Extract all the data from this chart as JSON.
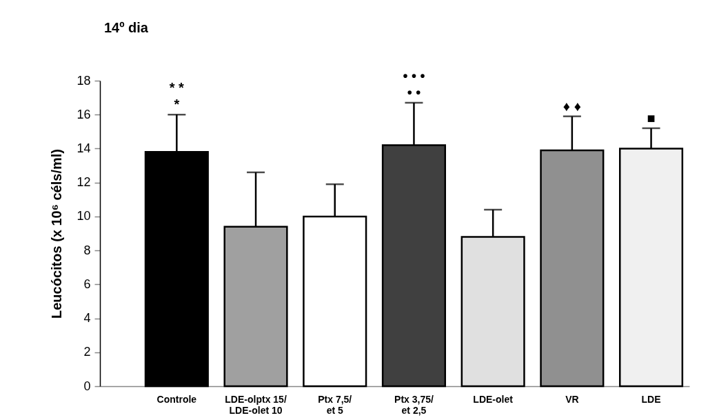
{
  "chart_data": {
    "type": "bar",
    "title": "14º dia",
    "ylabel": "Leucócitos (x 10⁶ céls/ml)",
    "categories": [
      "Controle",
      "LDE-olptx 15/\nLDE-olet 10",
      "Ptx 7,5/\net 5",
      "Ptx 3,75/\net 2,5",
      "LDE-olet",
      "VR",
      "LDE"
    ],
    "values": [
      13.8,
      9.4,
      10.0,
      14.2,
      8.8,
      13.9,
      14.0
    ],
    "errors": [
      [
        13.8,
        16.0
      ],
      [
        9.4,
        12.6
      ],
      [
        10.0,
        11.9
      ],
      [
        14.2,
        16.7
      ],
      [
        8.8,
        10.4
      ],
      [
        13.9,
        15.9
      ],
      [
        14.0,
        15.2
      ]
    ],
    "colors": [
      "#000000",
      "#a0a0a0",
      "#ffffff",
      "#404040",
      "#e0e0e0",
      "#909090",
      "#f0f0f0"
    ],
    "ylim": [
      0,
      18
    ],
    "yticks": [
      0,
      2,
      4,
      6,
      8,
      10,
      12,
      14,
      16,
      18
    ],
    "grid": false,
    "legend": false,
    "annotations": [
      {
        "text": "*",
        "x": "Controle",
        "y": 16.0
      },
      {
        "text": "* *",
        "x": "Controle",
        "y": 16.0
      },
      {
        "text": "• •",
        "x": "Ptx 3,75/\net 2,5",
        "y": 16.7
      },
      {
        "text": "• • •",
        "x": "Ptx 3,75/\net 2,5",
        "y": 16.7
      },
      {
        "text": "♦ ♦",
        "x": "VR",
        "y": 15.9
      },
      {
        "text": "■",
        "x": "LDE",
        "y": 15.2
      }
    ]
  }
}
